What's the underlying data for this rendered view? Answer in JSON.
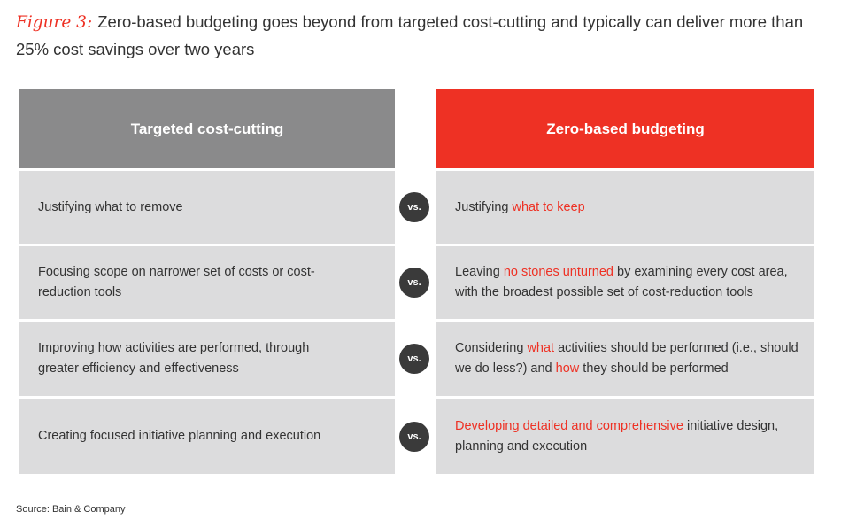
{
  "figure": {
    "label": "Figure 3:",
    "title": "Zero-based budgeting goes beyond from targeted cost-cutting and typically can deliver more than 25% cost savings over two years"
  },
  "table": {
    "headers": [
      {
        "text": "Targeted cost-cutting",
        "color": "#8a8a8b"
      },
      {
        "text": "Zero-based budgeting",
        "color": "#ee3124"
      }
    ],
    "rows": [
      {
        "left": "Justifying what to remove",
        "separator": "vs.",
        "right": [
          {
            "text": "Justifying ",
            "color": "#333333"
          },
          {
            "text": "what to keep",
            "color": "#ee3124"
          }
        ]
      },
      {
        "left": "Focusing scope on narrower set of costs or cost-reduction tools",
        "separator": "vs.",
        "right": [
          {
            "text": "Leaving ",
            "color": "#333333"
          },
          {
            "text": "no stones unturned",
            "color": "#ee3124"
          },
          {
            "text": " by examining every cost area, with the broadest possible set of cost-reduction tools",
            "color": "#333333"
          }
        ]
      },
      {
        "left": "Improving how activities are performed, through greater efficiency and effectiveness",
        "separator": "vs.",
        "right": [
          {
            "text": "Considering ",
            "color": "#333333"
          },
          {
            "text": "what",
            "color": "#ee3124"
          },
          {
            "text": " activities should be performed (i.e., should we do less?) and ",
            "color": "#333333"
          },
          {
            "text": "how",
            "color": "#ee3124"
          },
          {
            "text": " they should be performed",
            "color": "#333333"
          }
        ]
      },
      {
        "left": "Creating focused initiative planning and execution",
        "separator": "vs.",
        "right": [
          {
            "text": "Developing detailed and comprehensive",
            "color": "#ee3124"
          },
          {
            "text": " initiative design, planning and execution",
            "color": "#333333"
          }
        ]
      }
    ]
  },
  "source": "Source: Bain & Company"
}
